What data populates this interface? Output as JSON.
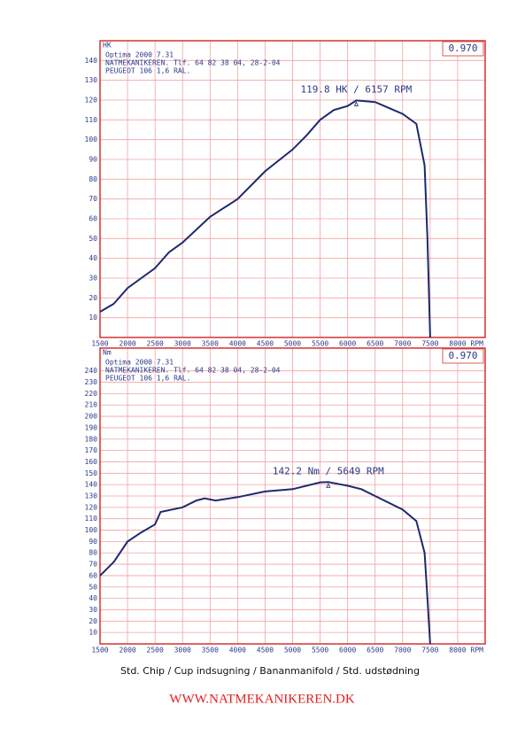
{
  "chart_data": [
    {
      "type": "line",
      "y_label": "HK",
      "x_label": "RPM",
      "correction": "0.970",
      "header": [
        "Optima 2000 7.31",
        "NATMEKANIKEREN. Tlf. 64 82 38 04, 28-2-04",
        "PEUGEOT 106 1,6 RAL."
      ],
      "color": "#1c2a6e",
      "grid": true,
      "x": [
        1500,
        1750,
        2000,
        2500,
        2750,
        3000,
        3500,
        4000,
        4500,
        5000,
        5250,
        5500,
        5750,
        6000,
        6157,
        6500,
        6750,
        7000,
        7250,
        7400,
        7450,
        7500
      ],
      "values": [
        13,
        17,
        25,
        35,
        43,
        48,
        61,
        70,
        84,
        95,
        102,
        110,
        115,
        117,
        119.8,
        119,
        116,
        113,
        108,
        87,
        50,
        0
      ],
      "annotation": {
        "text": "119.8 HK / 6157 RPM",
        "x": 6157,
        "y": 119.8
      },
      "xlim": [
        1500,
        8500
      ],
      "xticks": [
        1500,
        2000,
        2500,
        3000,
        3500,
        4000,
        4500,
        5000,
        5500,
        6000,
        6500,
        7000,
        7500,
        8000
      ],
      "ylim": [
        0,
        150
      ],
      "yticks": [
        10,
        20,
        30,
        40,
        50,
        60,
        70,
        80,
        90,
        100,
        110,
        120,
        130,
        140
      ]
    },
    {
      "type": "line",
      "y_label": "Nm",
      "x_label": "RPM",
      "correction": "0.970",
      "header": [
        "Optima 2000 7.31",
        "NATMEKANIKEREN. Tlf. 64 82 38 04, 28-2-04",
        "PEUGEOT 106 1,6 RAL."
      ],
      "color": "#1c2a6e",
      "grid": true,
      "x": [
        1500,
        1750,
        2000,
        2250,
        2500,
        2600,
        3000,
        3250,
        3400,
        3600,
        4000,
        4500,
        5000,
        5500,
        5649,
        6000,
        6250,
        6500,
        7000,
        7250,
        7400,
        7450,
        7500
      ],
      "values": [
        60,
        72,
        90,
        98,
        105,
        116,
        120,
        126,
        128,
        126,
        129,
        134,
        136,
        142,
        142.2,
        139,
        136,
        130,
        118,
        108,
        80,
        40,
        0
      ],
      "annotation": {
        "text": "142.2 Nm / 5649 RPM",
        "x": 5649,
        "y": 142.2
      },
      "xlim": [
        1500,
        8500
      ],
      "xticks": [
        1500,
        2000,
        2500,
        3000,
        3500,
        4000,
        4500,
        5000,
        5500,
        6000,
        6500,
        7000,
        7500,
        8000
      ],
      "ylim": [
        0,
        260
      ],
      "yticks": [
        10,
        20,
        30,
        40,
        50,
        60,
        70,
        80,
        90,
        100,
        110,
        120,
        130,
        140,
        150,
        160,
        170,
        180,
        190,
        200,
        210,
        220,
        230,
        240
      ]
    }
  ],
  "caption": "Std. Chip / Cup indsugning / Bananmanifold / Std. udstødning",
  "website": "WWW.NATMEKANIKEREN.DK"
}
